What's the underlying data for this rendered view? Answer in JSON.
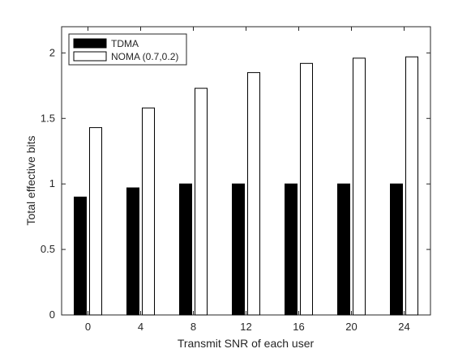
{
  "chart_data": {
    "type": "bar",
    "xlabel": "Transmit SNR of each user",
    "ylabel": "Total effective bits",
    "categories": [
      "0",
      "4",
      "8",
      "12",
      "16",
      "20",
      "24"
    ],
    "ylim": [
      0,
      2.2
    ],
    "yticks": [
      0,
      0.5,
      1,
      1.5,
      2
    ],
    "ytick_labels": [
      "0",
      "0.5",
      "1",
      "1.5",
      "2"
    ],
    "grid": false,
    "legend_position": "top-left",
    "series": [
      {
        "name": "TDMA",
        "color": "#000000",
        "values": [
          0.9,
          0.97,
          1.0,
          1.0,
          1.0,
          1.0,
          1.0
        ]
      },
      {
        "name": "NOMA (0.7,0.2)",
        "color": "#ffffff",
        "values": [
          1.43,
          1.58,
          1.73,
          1.85,
          1.92,
          1.96,
          1.97
        ]
      }
    ]
  }
}
